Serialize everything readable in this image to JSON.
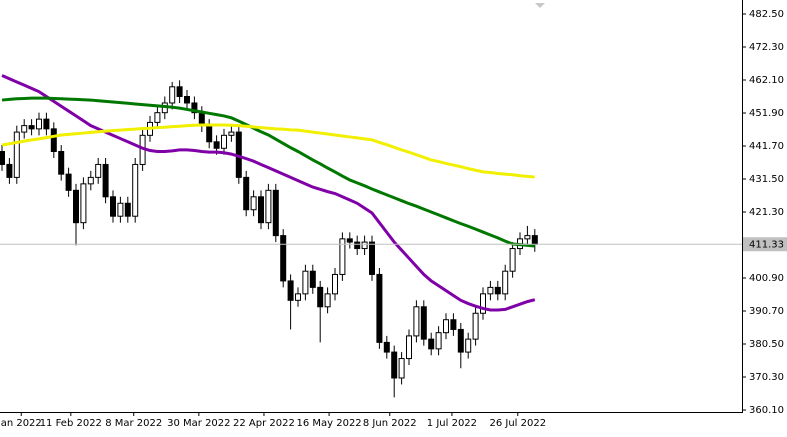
{
  "chart_data": {
    "type": "candlestick",
    "open": [
      440,
      436,
      432,
      446,
      448,
      447,
      450,
      447,
      440,
      433,
      428,
      418,
      430,
      432,
      436,
      426,
      420,
      424,
      420,
      436,
      445,
      449,
      452,
      455,
      460,
      457,
      455,
      452,
      448,
      443,
      441,
      445,
      446,
      432,
      422,
      426,
      418,
      428,
      414,
      400,
      394,
      396,
      403,
      398,
      392,
      396,
      402,
      413,
      412,
      410,
      412,
      402,
      381,
      378,
      370,
      376,
      383,
      392,
      382,
      379,
      384,
      388,
      385,
      378,
      382,
      390,
      396,
      398,
      396,
      403,
      410,
      413,
      414
    ],
    "high": [
      442,
      438,
      448,
      450,
      450,
      452,
      452,
      449,
      442,
      435,
      430,
      432,
      434,
      438,
      438,
      428,
      426,
      426,
      438,
      447,
      451,
      454,
      457,
      461.5,
      462,
      459,
      457,
      454,
      450,
      445,
      447,
      448,
      448,
      434,
      428,
      428,
      430,
      430,
      416,
      402,
      398,
      405,
      405,
      400,
      398,
      404,
      415,
      415,
      414,
      414,
      414,
      404,
      383,
      380,
      378,
      385,
      394,
      394,
      384,
      386,
      390,
      390,
      387,
      384,
      392,
      398,
      400,
      400,
      405,
      412,
      415,
      417,
      416
    ],
    "low": [
      434,
      430,
      430,
      444,
      445,
      445,
      445,
      438,
      431,
      426,
      411,
      416,
      428,
      430,
      424,
      418,
      418,
      418,
      418,
      434,
      443,
      447,
      450,
      453,
      455,
      453,
      450,
      446,
      441,
      439,
      439,
      443,
      430,
      420,
      420,
      416,
      416,
      412,
      398,
      385,
      392,
      394,
      396,
      381,
      390,
      394,
      400,
      410,
      408,
      408,
      400,
      379,
      376,
      364,
      368,
      374,
      381,
      380,
      377,
      377,
      382,
      383,
      373,
      376,
      380,
      388,
      394,
      394,
      394,
      401,
      408,
      411,
      409
    ],
    "close": [
      436,
      432,
      446,
      448,
      447,
      450,
      447,
      440,
      433,
      428,
      418,
      430,
      432,
      436,
      426,
      420,
      424,
      420,
      436,
      445,
      449,
      452,
      455,
      460,
      457,
      455,
      452,
      448,
      443,
      441,
      445,
      446,
      432,
      422,
      426,
      418,
      428,
      414,
      400,
      394,
      396,
      403,
      398,
      392,
      396,
      402,
      413,
      412,
      410,
      412,
      402,
      381,
      378,
      370,
      376,
      383,
      392,
      382,
      379,
      384,
      388,
      385,
      378,
      382,
      390,
      396,
      398,
      396,
      403,
      410,
      413,
      414,
      411.33
    ],
    "up_color": "#ffffff",
    "down_color": "#000000",
    "wick_color": "#000000",
    "series": [
      {
        "color": "#8000a8",
        "values": [
          463.5,
          462.5,
          461.5,
          460.5,
          459.5,
          458.5,
          457,
          455.5,
          454,
          452.5,
          451,
          449.5,
          448,
          447,
          446,
          445,
          444,
          443,
          442,
          441,
          440.3,
          440,
          440,
          440.2,
          440.5,
          440.5,
          440.3,
          440,
          439.8,
          439.8,
          439.6,
          439.2,
          438.5,
          437.8,
          437,
          436,
          435,
          434,
          433,
          432,
          431,
          430,
          429,
          428.3,
          427.6,
          427,
          426,
          425,
          424,
          422.5,
          421,
          418,
          415,
          412,
          409.5,
          407,
          404.5,
          402,
          400,
          398.5,
          397,
          395.5,
          394,
          393,
          392.2,
          391.5,
          391,
          391,
          391.2,
          392,
          392.8,
          393.6,
          394.2
        ]
      },
      {
        "color": "#007800",
        "values": [
          455.9,
          456.1,
          456.3,
          456.4,
          456.5,
          456.5,
          456.5,
          456.4,
          456.3,
          456.2,
          456.1,
          456,
          455.9,
          455.7,
          455.5,
          455.3,
          455.1,
          454.9,
          454.7,
          454.5,
          454.3,
          454.1,
          453.9,
          453.7,
          453.4,
          453,
          452.6,
          452.2,
          451.8,
          451.4,
          451,
          450.4,
          449.4,
          448.3,
          447.2,
          446.1,
          445.1,
          443.8,
          442.5,
          441.2,
          440,
          438.7,
          437.4,
          436.2,
          434.9,
          433.7,
          432.4,
          431.2,
          430.3,
          429.4,
          428.4,
          427.5,
          426.6,
          425.7,
          424.8,
          423.9,
          423.1,
          422.2,
          421.3,
          420.4,
          419.5,
          418.6,
          417.7,
          416.9,
          416,
          415.1,
          414.2,
          413.3,
          412.3,
          411.4,
          411.2,
          411,
          410.8
        ]
      },
      {
        "color": "#f0f000",
        "values": [
          442,
          442.4,
          442.8,
          443.2,
          443.6,
          443.9,
          444.3,
          444.7,
          445.1,
          445.3,
          445.5,
          445.7,
          445.9,
          446.1,
          446.3,
          446.5,
          446.6,
          446.8,
          446.9,
          447.1,
          447.2,
          447.4,
          447.5,
          447.7,
          447.8,
          448,
          448.1,
          448.2,
          448.2,
          448.2,
          448.2,
          448.1,
          448,
          447.8,
          447.6,
          447.4,
          447.2,
          447,
          446.9,
          446.7,
          446.6,
          446.3,
          446,
          445.7,
          445.4,
          445.1,
          444.8,
          444.5,
          444.2,
          443.9,
          443.6,
          442.8,
          442.1,
          441.3,
          440.5,
          439.8,
          439,
          438.2,
          437.4,
          436.9,
          436.3,
          435.8,
          435.3,
          434.7,
          434.2,
          433.7,
          433.5,
          433.2,
          433,
          432.8,
          432.5,
          432.3,
          432.1
        ]
      }
    ],
    "last_price": 411.33,
    "ylim": [
      359.48,
      486.83
    ],
    "yticks": [
      {
        "value": 482.5,
        "label": "482.50"
      },
      {
        "value": 472.3,
        "label": "472.30"
      },
      {
        "value": 462.1,
        "label": "462.10"
      },
      {
        "value": 451.9,
        "label": "451.90"
      },
      {
        "value": 441.7,
        "label": "441.70"
      },
      {
        "value": 431.5,
        "label": "431.50"
      },
      {
        "value": 421.3,
        "label": "421.30"
      },
      {
        "value": 400.9,
        "label": "400.90"
      },
      {
        "value": 390.7,
        "label": "390.70"
      },
      {
        "value": 380.5,
        "label": "380.50"
      },
      {
        "value": 370.3,
        "label": "370.30"
      },
      {
        "value": 360.1,
        "label": "360.10"
      }
    ],
    "xticks": [
      {
        "value": 2.6,
        "label": "an 2022"
      },
      {
        "value": 9.3,
        "label": "11 Feb 2022"
      },
      {
        "value": 17.8,
        "label": "8 Mar 2022"
      },
      {
        "value": 26.6,
        "label": "30 Mar 2022"
      },
      {
        "value": 35.4,
        "label": "22 Apr 2022"
      },
      {
        "value": 44.2,
        "label": "16 May 2022"
      },
      {
        "value": 52.4,
        "label": "8 Jun 2022"
      },
      {
        "value": 60.8,
        "label": "1 Jul 2022"
      },
      {
        "value": 69.7,
        "label": "26 Jul 2022"
      }
    ]
  }
}
